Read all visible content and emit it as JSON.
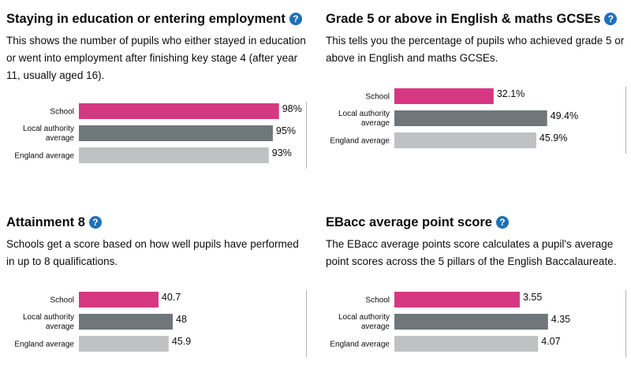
{
  "panels": [
    {
      "title": "Staying in education or entering employment",
      "description": "This shows the number of pupils who either stayed in education or went into employment after finishing key stage 4 (after year 11, usually aged 16).",
      "help_icon": "question-circle-icon"
    },
    {
      "title": "Grade 5 or above in English & maths GCSEs",
      "description": "This tells you the percentage of pupils who achieved grade 5 or above in English and maths GCSEs.",
      "help_icon": "question-circle-icon"
    },
    {
      "title": "Attainment 8",
      "description": "Schools get a score based on how well pupils have performed in up to 8 qualifications.",
      "help_icon": "question-circle-icon"
    },
    {
      "title": "EBacc average point score",
      "description": "The EBacc average points score calculates a pupil's average point scores across the 5 pillars of the English Baccalaureate.",
      "help_icon": "question-circle-icon"
    }
  ],
  "colors": {
    "school": "#d53880",
    "local_authority": "#6f777b",
    "england": "#bfc1c3",
    "help_icon": "#1d70b8"
  },
  "chart_data": [
    {
      "type": "bar",
      "orientation": "horizontal",
      "categories": [
        [
          "School"
        ],
        [
          "Local authority",
          "average"
        ],
        [
          "England average"
        ]
      ],
      "values": [
        98,
        95,
        93
      ],
      "value_labels": [
        "98%",
        "95%",
        "93%"
      ],
      "xlim": [
        0,
        124
      ]
    },
    {
      "type": "bar",
      "orientation": "horizontal",
      "categories": [
        [
          "School"
        ],
        [
          "Local authority",
          "average"
        ],
        [
          "England average"
        ]
      ],
      "values": [
        32.1,
        49.4,
        45.9
      ],
      "value_labels": [
        "32.1%",
        "49.4%",
        "45.9%"
      ],
      "xlim": [
        0,
        100
      ]
    },
    {
      "type": "bar",
      "orientation": "horizontal",
      "categories": [
        [
          "School"
        ],
        [
          "Local authority",
          "average"
        ],
        [
          "England average"
        ]
      ],
      "values": [
        40.7,
        48,
        45.9
      ],
      "value_labels": [
        "40.7",
        "48",
        "45.9"
      ],
      "xlim": [
        0,
        100
      ]
    },
    {
      "type": "bar",
      "orientation": "horizontal",
      "categories": [
        [
          "School"
        ],
        [
          "Local authority",
          "average"
        ],
        [
          "England average"
        ]
      ],
      "values": [
        3.55,
        4.35,
        4.07
      ],
      "value_labels": [
        "3.55",
        "4.35",
        "4.07"
      ],
      "xlim": [
        0,
        9
      ]
    }
  ]
}
